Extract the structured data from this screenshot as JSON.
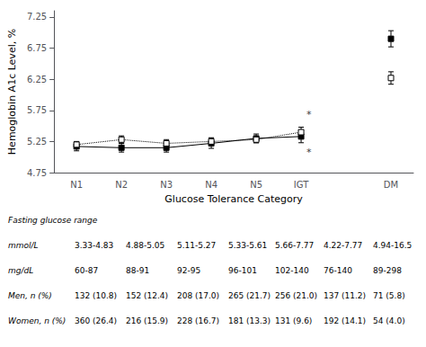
{
  "chart_data": {
    "type": "line",
    "categories": [
      "N1",
      "N2",
      "N3",
      "N4",
      "N5",
      "IGT",
      null,
      "DM"
    ],
    "xlabel": "Glucose Tolerance Category",
    "ylabel": "Hemoglobin A1c Level, %",
    "ylim": [
      4.75,
      7.35
    ],
    "yticks": [
      4.75,
      5.25,
      5.75,
      6.25,
      6.75,
      7.25
    ],
    "grid": false,
    "series": [
      {
        "color": "#000000",
        "marker": "square",
        "line_style": "solid",
        "values": [
          5.17,
          5.15,
          5.15,
          5.22,
          5.3,
          5.33,
          null,
          6.9
        ],
        "errors": [
          0.07,
          0.07,
          0.07,
          0.08,
          0.07,
          0.1,
          null,
          0.13
        ]
      },
      {
        "color": "#000000",
        "marker": "open_square",
        "line_style": "dotted",
        "values": [
          5.2,
          5.28,
          5.22,
          5.25,
          5.28,
          5.4,
          null,
          6.27
        ],
        "errors": [
          0.05,
          0.06,
          0.06,
          0.06,
          0.05,
          0.08,
          null,
          0.1
        ]
      }
    ],
    "annotations": [
      {
        "text": "*",
        "x": "IGT",
        "y": 5.68
      },
      {
        "text": "*",
        "x": "IGT",
        "y": 5.08
      }
    ],
    "table": [
      [
        "Fasting glucose range"
      ],
      [
        "mmol/L",
        "3.33-4.83",
        "4.88-5.05",
        "5.11-5.27",
        "5.33-5.61",
        "5.66-7.77",
        "4.22-7.77",
        "4.94-16.5"
      ],
      [
        "mg/dL",
        "60-87",
        "88-91",
        "92-95",
        "96-101",
        "102-140",
        "76-140",
        "89-298"
      ],
      [
        "Men, n (%)",
        "132 (10.8)",
        "152 (12.4)",
        "208 (17.0)",
        "265 (21.7)",
        "256 (21.0)",
        "137 (11.2)",
        "71 (5.8)"
      ],
      [
        "Women, n (%)",
        "360 (26.4)",
        "216 (15.9)",
        "228 (16.7)",
        "181 (13.3)",
        "131 (9.6)",
        "192 (14.1)",
        "54 (4.0)"
      ]
    ]
  }
}
